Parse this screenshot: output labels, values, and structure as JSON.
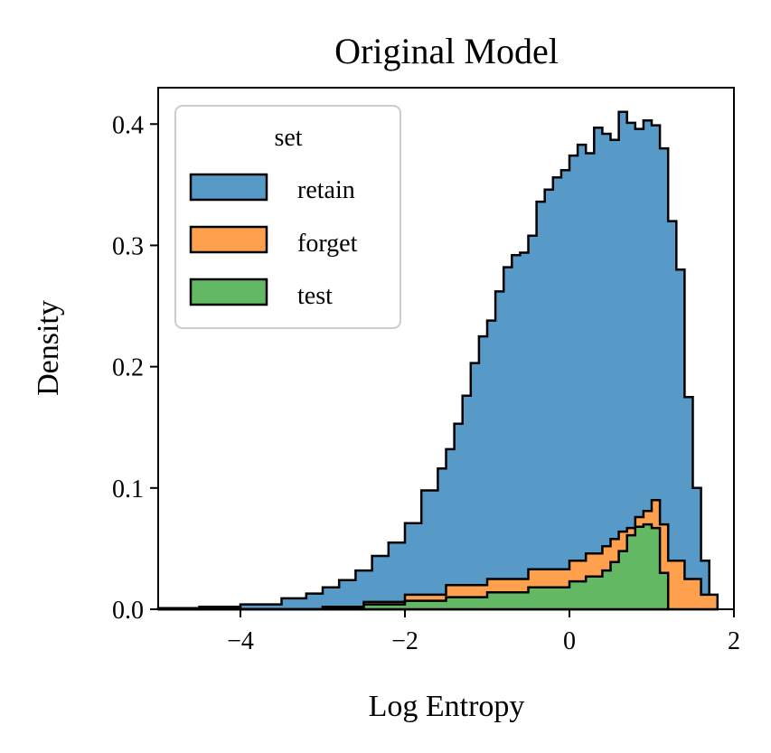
{
  "chart_data": {
    "type": "area",
    "title": "Original Model",
    "xlabel": "Log Entropy",
    "ylabel": "Density",
    "xlim": [
      -5,
      2
    ],
    "ylim": [
      0,
      0.43
    ],
    "xticks": [
      {
        "value": -4,
        "label": "−4"
      },
      {
        "value": -2,
        "label": "−2"
      },
      {
        "value": 0,
        "label": "0"
      },
      {
        "value": 2,
        "label": "2"
      }
    ],
    "yticks": [
      {
        "value": 0.0,
        "label": "0.0"
      },
      {
        "value": 0.1,
        "label": "0.1"
      },
      {
        "value": 0.2,
        "label": "0.2"
      },
      {
        "value": 0.3,
        "label": "0.3"
      },
      {
        "value": 0.4,
        "label": "0.4"
      }
    ],
    "grid": false,
    "stacked": true,
    "legend": {
      "title": "set",
      "placement": "upper-left"
    },
    "series": [
      {
        "name": "retain",
        "color": "#5799c7",
        "x": [
          -5.0,
          -4.5,
          -4.0,
          -3.5,
          -3.2,
          -3.0,
          -2.8,
          -2.6,
          -2.4,
          -2.2,
          -2.0,
          -1.8,
          -1.6,
          -1.5,
          -1.4,
          -1.3,
          -1.2,
          -1.1,
          -1.0,
          -0.9,
          -0.8,
          -0.7,
          -0.6,
          -0.5,
          -0.4,
          -0.3,
          -0.2,
          -0.1,
          0.0,
          0.1,
          0.2,
          0.3,
          0.4,
          0.5,
          0.6,
          0.7,
          0.8,
          0.9,
          1.0,
          1.1,
          1.2,
          1.3,
          1.4,
          1.5,
          1.6,
          1.7,
          1.8
        ],
        "values": [
          0.001,
          0.002,
          0.004,
          0.009,
          0.013,
          0.018,
          0.024,
          0.032,
          0.044,
          0.055,
          0.071,
          0.098,
          0.116,
          0.132,
          0.153,
          0.176,
          0.203,
          0.225,
          0.238,
          0.262,
          0.282,
          0.292,
          0.294,
          0.308,
          0.336,
          0.346,
          0.356,
          0.362,
          0.374,
          0.383,
          0.376,
          0.397,
          0.392,
          0.387,
          0.41,
          0.401,
          0.396,
          0.403,
          0.399,
          0.38,
          0.32,
          0.28,
          0.175,
          0.1,
          0.04,
          0.006,
          0.0
        ]
      },
      {
        "name": "forget",
        "color": "#fea04e",
        "x": [
          -5.0,
          -4.0,
          -3.0,
          -2.5,
          -2.0,
          -1.5,
          -1.0,
          -0.5,
          0.0,
          0.2,
          0.4,
          0.5,
          0.6,
          0.7,
          0.8,
          0.9,
          1.0,
          1.1,
          1.2,
          1.4,
          1.6,
          1.8
        ],
        "values": [
          0.0,
          0.0,
          0.002,
          0.006,
          0.012,
          0.02,
          0.025,
          0.033,
          0.04,
          0.046,
          0.052,
          0.058,
          0.064,
          0.067,
          0.076,
          0.081,
          0.09,
          0.07,
          0.04,
          0.025,
          0.012,
          0.0
        ]
      },
      {
        "name": "test",
        "color": "#63b863",
        "x": [
          -5.0,
          -3.0,
          -2.5,
          -2.0,
          -1.5,
          -1.0,
          -0.5,
          0.0,
          0.2,
          0.4,
          0.5,
          0.6,
          0.7,
          0.8,
          0.9,
          1.0,
          1.1,
          1.2
        ],
        "values": [
          0.0,
          0.001,
          0.004,
          0.007,
          0.01,
          0.014,
          0.018,
          0.023,
          0.027,
          0.032,
          0.039,
          0.048,
          0.061,
          0.068,
          0.07,
          0.067,
          0.03,
          0.0
        ]
      }
    ]
  }
}
